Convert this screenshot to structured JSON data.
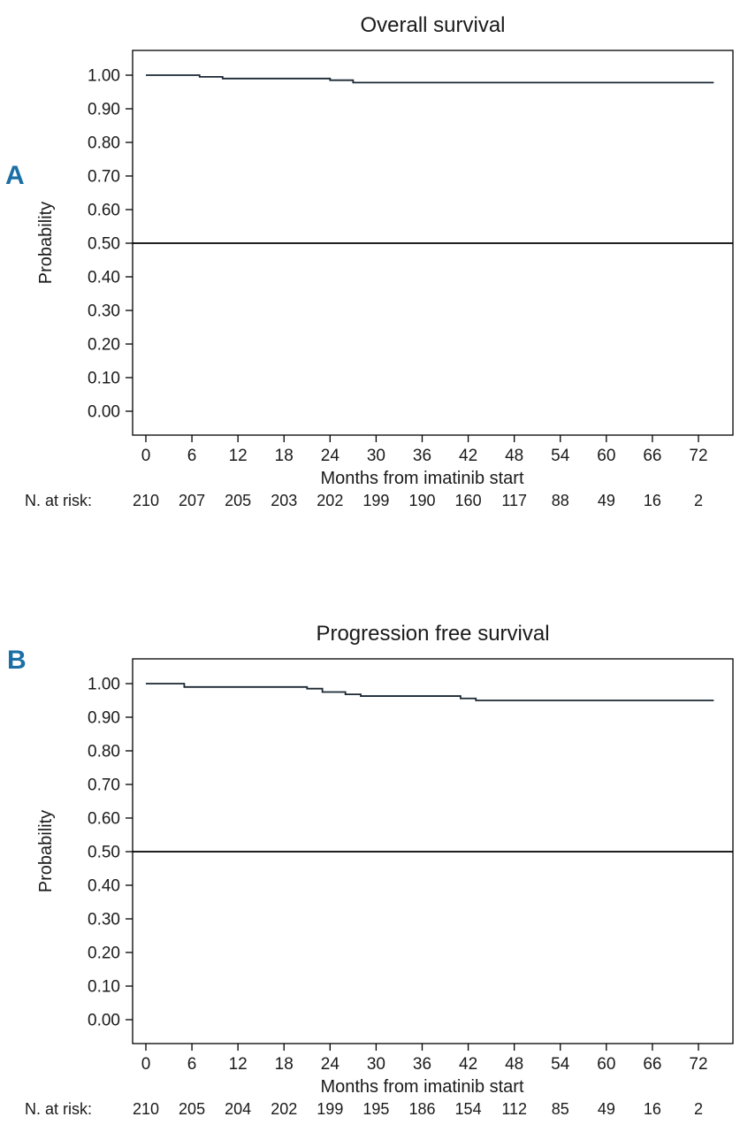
{
  "panels": [
    {
      "panel_label": "A"
    },
    {
      "panel_label": "B"
    }
  ],
  "colors": {
    "curve": "#1a2733",
    "reference_line": "#000000",
    "axis": "#000000",
    "text": "#1a1a1a",
    "panel_label": "#1a6fa5"
  },
  "chart_data": [
    {
      "type": "line",
      "subtype": "kaplan-meier-step",
      "title": "Overall survival",
      "xlabel": "Months from imatinib start",
      "ylabel": "Probability",
      "xlim": [
        0,
        74
      ],
      "ylim": [
        0,
        1
      ],
      "xticks": [
        0,
        6,
        12,
        18,
        24,
        30,
        36,
        42,
        48,
        54,
        60,
        66,
        72
      ],
      "yticks": [
        "0.00",
        "0.10",
        "0.20",
        "0.30",
        "0.40",
        "0.50",
        "0.60",
        "0.70",
        "0.80",
        "0.90",
        "1.00"
      ],
      "grid": false,
      "legend": "none",
      "reference_line_y": 0.5,
      "curve_end_month": 74,
      "survival_points": [
        [
          0,
          1.0
        ],
        [
          7,
          0.995
        ],
        [
          10,
          0.99
        ],
        [
          24,
          0.985
        ],
        [
          27,
          0.978
        ]
      ],
      "at_risk_label": "N. at risk:",
      "at_risk": [
        210,
        207,
        205,
        203,
        202,
        199,
        190,
        160,
        117,
        88,
        49,
        16,
        2
      ]
    },
    {
      "type": "line",
      "subtype": "kaplan-meier-step",
      "title": "Progression free survival",
      "xlabel": "Months from imatinib start",
      "ylabel": "Probability",
      "xlim": [
        0,
        74
      ],
      "ylim": [
        0,
        1
      ],
      "xticks": [
        0,
        6,
        12,
        18,
        24,
        30,
        36,
        42,
        48,
        54,
        60,
        66,
        72
      ],
      "yticks": [
        "0.00",
        "0.10",
        "0.20",
        "0.30",
        "0.40",
        "0.50",
        "0.60",
        "0.70",
        "0.80",
        "0.90",
        "1.00"
      ],
      "grid": false,
      "legend": "none",
      "reference_line_y": 0.5,
      "curve_end_month": 74,
      "survival_points": [
        [
          0,
          1.0
        ],
        [
          5,
          0.99
        ],
        [
          21,
          0.985
        ],
        [
          23,
          0.975
        ],
        [
          26,
          0.968
        ],
        [
          28,
          0.963
        ],
        [
          41,
          0.956
        ],
        [
          43,
          0.95
        ]
      ],
      "at_risk_label": "N. at risk:",
      "at_risk": [
        210,
        205,
        204,
        202,
        199,
        195,
        186,
        154,
        112,
        85,
        49,
        16,
        2
      ]
    }
  ]
}
